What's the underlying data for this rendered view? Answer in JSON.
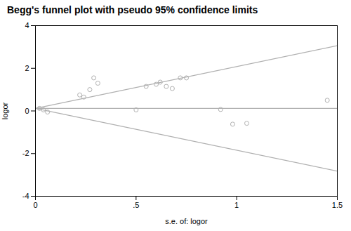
{
  "chart_data": {
    "type": "scatter",
    "title": "Begg's funnel plot with pseudo 95% confidence limits",
    "xlabel": "s.e. of: logor",
    "ylabel": "logor",
    "xlim": [
      0,
      1.5
    ],
    "ylim": [
      -4,
      4
    ],
    "xticks": [
      0,
      {
        "value": 0.5,
        "label": ".5"
      },
      1,
      1.5
    ],
    "yticks": [
      -4,
      -2,
      0,
      2,
      4
    ],
    "grid": false,
    "series": [
      {
        "type": "line",
        "color": "#b0b0b0",
        "x": [
          0,
          1.5
        ],
        "values": [
          0.12,
          3.06
        ]
      },
      {
        "type": "line",
        "color": "#b0b0b0",
        "x": [
          0,
          1.5
        ],
        "values": [
          0.12,
          -2.82
        ]
      },
      {
        "type": "line",
        "color": "#b0b0b0",
        "x": [
          0,
          1.5
        ],
        "values": [
          0.12,
          0.12
        ]
      },
      {
        "type": "scatter",
        "color": "#b0b0b0",
        "marker": "circle",
        "x": [
          0.02,
          0.04,
          0.06,
          0.22,
          0.24,
          0.27,
          0.29,
          0.31,
          0.5,
          0.55,
          0.6,
          0.62,
          0.65,
          0.68,
          0.72,
          0.75,
          0.92,
          0.98,
          1.05,
          1.45
        ],
        "values": [
          0.12,
          0.05,
          -0.05,
          0.75,
          0.65,
          1.0,
          1.55,
          1.3,
          0.05,
          1.15,
          1.25,
          1.35,
          1.15,
          1.05,
          1.55,
          1.55,
          0.07,
          -0.62,
          -0.58,
          0.5
        ]
      }
    ]
  }
}
